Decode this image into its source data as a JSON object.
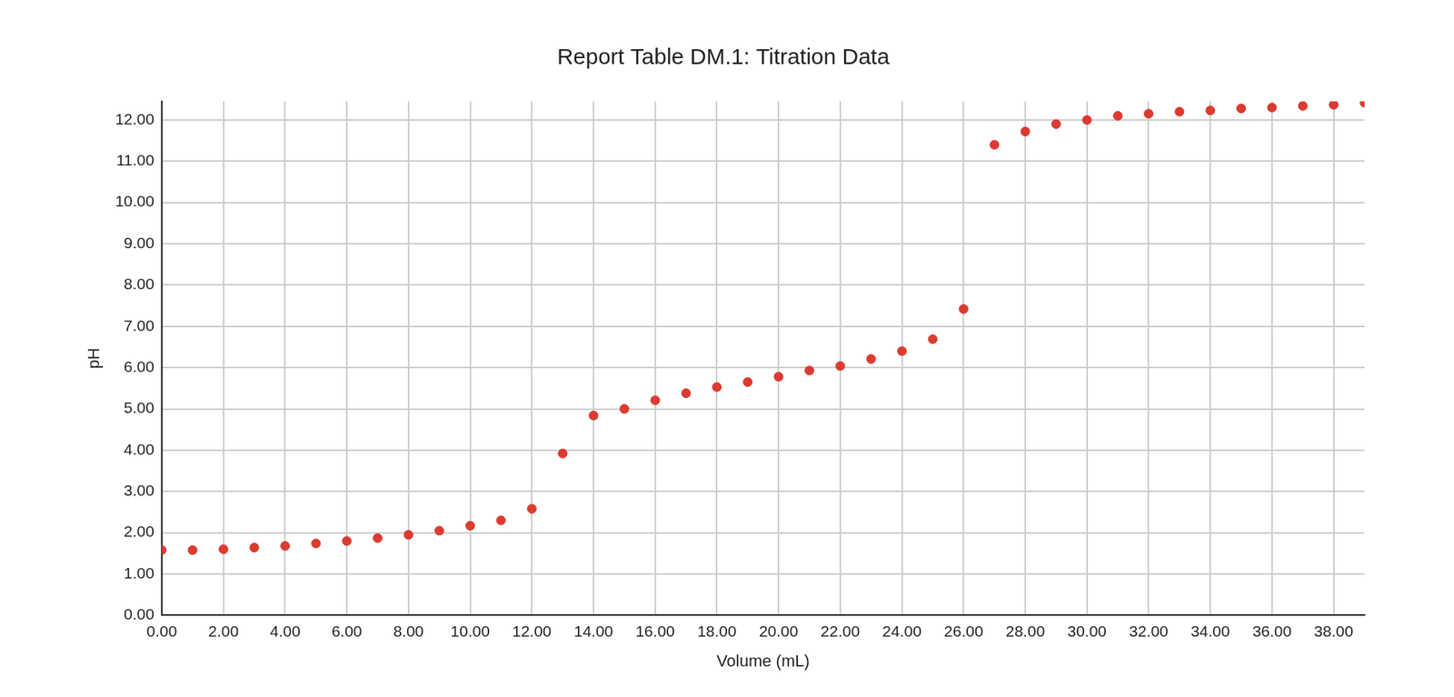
{
  "chart_data": {
    "type": "scatter",
    "title": "Report Table DM.1: Titration Data",
    "x_label": "Volume (mL)",
    "y_label": "pH",
    "x": [
      0,
      1,
      2,
      3,
      4,
      5,
      6,
      7,
      8,
      9,
      10,
      11,
      12,
      13,
      14,
      15,
      16,
      17,
      18,
      19,
      20,
      21,
      22,
      23,
      24,
      25,
      26,
      27,
      28,
      29,
      30,
      31,
      32,
      33,
      34,
      35,
      36,
      37,
      38,
      39
    ],
    "values": [
      1.58,
      1.58,
      1.6,
      1.64,
      1.68,
      1.74,
      1.8,
      1.87,
      1.95,
      2.05,
      2.17,
      2.3,
      2.58,
      3.92,
      4.84,
      5.0,
      5.21,
      5.38,
      5.53,
      5.65,
      5.78,
      5.93,
      6.04,
      6.21,
      6.4,
      6.69,
      7.42,
      11.4,
      11.72,
      11.9,
      12.0,
      12.1,
      12.15,
      12.2,
      12.23,
      12.28,
      12.3,
      12.34,
      12.37,
      12.42
    ],
    "color": "#db3b30",
    "marker": "circle",
    "xlim": [
      0,
      39
    ],
    "xticks": [
      {
        "value": 0,
        "label": "0.00"
      },
      {
        "value": 2,
        "label": "2.00"
      },
      {
        "value": 4,
        "label": "4.00"
      },
      {
        "value": 6,
        "label": "6.00"
      },
      {
        "value": 8,
        "label": "8.00"
      },
      {
        "value": 10,
        "label": "10.00"
      },
      {
        "value": 12,
        "label": "12.00"
      },
      {
        "value": 14,
        "label": "14.00"
      },
      {
        "value": 16,
        "label": "16.00"
      },
      {
        "value": 18,
        "label": "18.00"
      },
      {
        "value": 20,
        "label": "20.00"
      },
      {
        "value": 22,
        "label": "22.00"
      },
      {
        "value": 24,
        "label": "24.00"
      },
      {
        "value": 26,
        "label": "26.00"
      },
      {
        "value": 28,
        "label": "28.00"
      },
      {
        "value": 30,
        "label": "30.00"
      },
      {
        "value": 32,
        "label": "32.00"
      },
      {
        "value": 34,
        "label": "34.00"
      },
      {
        "value": 36,
        "label": "36.00"
      },
      {
        "value": 38,
        "label": "38.00"
      }
    ],
    "ylim": [
      0,
      12.45
    ],
    "yticks": [
      {
        "value": 0,
        "label": "0.00"
      },
      {
        "value": 1,
        "label": "1.00"
      },
      {
        "value": 2,
        "label": "2.00"
      },
      {
        "value": 3,
        "label": "3.00"
      },
      {
        "value": 4,
        "label": "4.00"
      },
      {
        "value": 5,
        "label": "5.00"
      },
      {
        "value": 6,
        "label": "6.00"
      },
      {
        "value": 7,
        "label": "7.00"
      },
      {
        "value": 8,
        "label": "8.00"
      },
      {
        "value": 9,
        "label": "9.00"
      },
      {
        "value": 10,
        "label": "10.00"
      },
      {
        "value": 11,
        "label": "11.00"
      },
      {
        "value": 12,
        "label": "12.00"
      }
    ],
    "grid": true
  }
}
